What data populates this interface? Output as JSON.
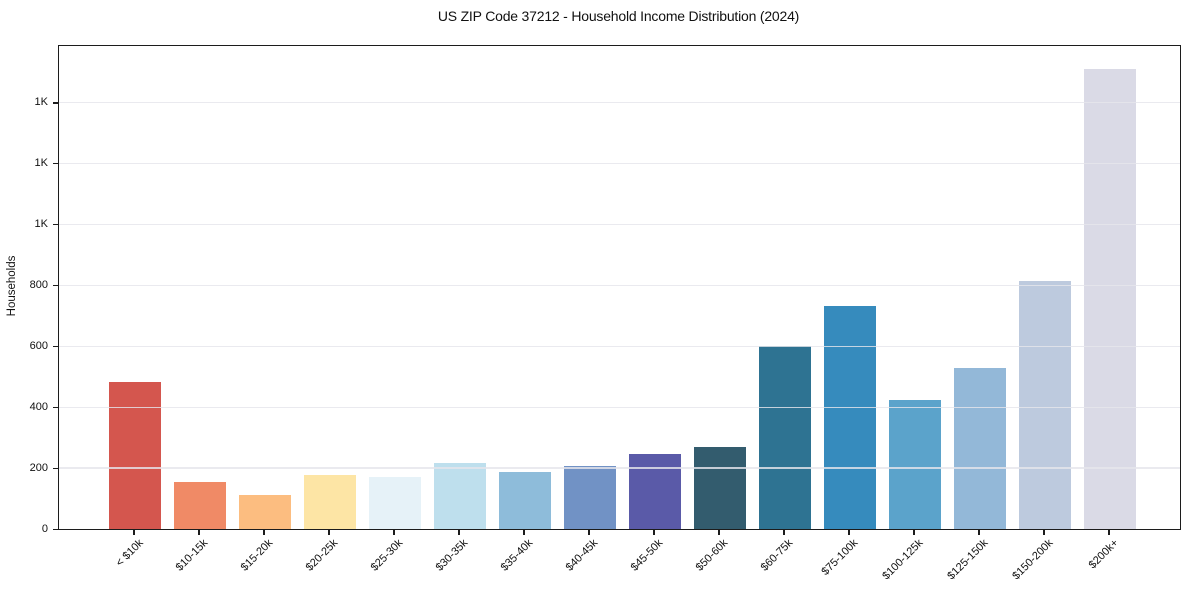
{
  "chart_data": {
    "type": "bar",
    "title": "US ZIP Code 37212 - Household Income Distribution (2024)",
    "xlabel": "",
    "ylabel": "Households",
    "categories": [
      "< $10k",
      "$10-15k",
      "$15-20k",
      "$20-25k",
      "$25-30k",
      "$30-35k",
      "$35-40k",
      "$40-45k",
      "$45-50k",
      "$50-60k",
      "$60-75k",
      "$75-100k",
      "$100-125k",
      "$125-150k",
      "$150-200k",
      "$200k+"
    ],
    "values": [
      483,
      155,
      112,
      176,
      170,
      215,
      188,
      208,
      245,
      270,
      600,
      731,
      425,
      528,
      815,
      1508
    ],
    "bar_colors": [
      "#d4564e",
      "#f08a66",
      "#fcbd80",
      "#fde5a5",
      "#e6f2f8",
      "#bedfed",
      "#8ebcda",
      "#7192c5",
      "#5a5aa8",
      "#335c6e",
      "#2e7392",
      "#368bbd",
      "#5ba3cb",
      "#93b8d8",
      "#bdcade",
      "#dadae6"
    ],
    "ylim": [
      0,
      1585
    ],
    "yticks": [
      {
        "value": 0,
        "label": "0"
      },
      {
        "value": 200,
        "label": "200"
      },
      {
        "value": 400,
        "label": "400"
      },
      {
        "value": 600,
        "label": "600"
      },
      {
        "value": 800,
        "label": "800"
      },
      {
        "value": 1000,
        "label": "1K"
      },
      {
        "value": 1200,
        "label": "1K"
      },
      {
        "value": 1400,
        "label": "1K"
      }
    ],
    "grid": "horizontal",
    "legend": "none",
    "background_color": "#ffffff",
    "axis_color": "#1c1c1c",
    "grid_color": "#e5e5ec"
  }
}
